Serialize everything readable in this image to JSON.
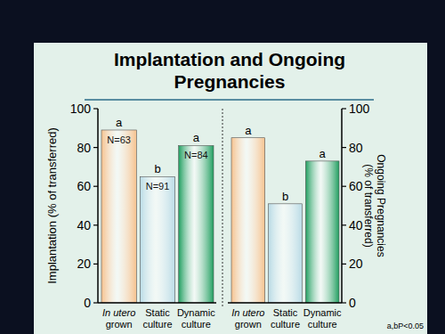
{
  "chart_data": [
    {
      "type": "bar",
      "title": "Implantation and Ongoing Pregnancies",
      "categories": [
        "In utero grown",
        "Static culture",
        "Dynamic culture"
      ],
      "values": [
        89,
        65,
        81
      ],
      "colors": [
        "#f6c28e",
        "#b9dbe6",
        "#1f9e5f"
      ],
      "significance": [
        "a",
        "b",
        "a"
      ],
      "n_labels": [
        "N=63",
        "N=91",
        "N=84"
      ],
      "ylabel": "Implantation (% of transferred)",
      "ylim": [
        0,
        100
      ],
      "yticks": [
        0,
        20,
        40,
        60,
        80,
        100
      ],
      "grid": false
    },
    {
      "type": "bar",
      "categories": [
        "In utero grown",
        "Static culture",
        "Dynamic culture"
      ],
      "series": [
        {
          "values": [
            85,
            51,
            73
          ],
          "axis": "y2"
        }
      ],
      "colors": [
        "#f6c28e",
        "#b9dbe6",
        "#1f9e5f"
      ],
      "significance": [
        "a",
        "b",
        "a"
      ],
      "y2label": "Ongoing Pregnancies (% of transferred)",
      "y2lim": [
        0,
        100
      ],
      "y2ticks": [
        0,
        20,
        40,
        60,
        80,
        100
      ],
      "grid": false,
      "footnote": "a,bP<0.05"
    }
  ]
}
